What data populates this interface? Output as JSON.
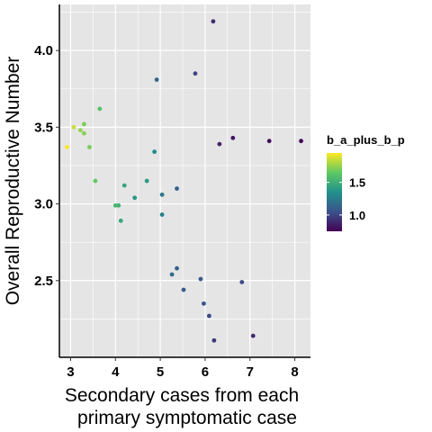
{
  "chart_data": {
    "type": "scatter",
    "title": "",
    "xlabel_lines": [
      "Secondary cases from each",
      "primary symptomatic case"
    ],
    "ylabel": "Overall Reproductive Number",
    "xlim": [
      2.75,
      8.35
    ],
    "ylim": [
      2.0,
      4.3
    ],
    "x_ticks": [
      3,
      4,
      5,
      6,
      7,
      8
    ],
    "y_ticks": [
      2.5,
      3.0,
      3.5,
      4.0
    ],
    "y_tick_labels": [
      "2.5",
      "3.0",
      "3.5",
      "4.0"
    ],
    "x_minor_gridlines": [
      3.5,
      4.5,
      5.5,
      6.5,
      7.5
    ],
    "y_minor_gridlines": [
      2.25,
      2.75,
      3.25,
      3.75,
      4.25
    ],
    "grid": true,
    "background": "#e5e5e5",
    "gridline_color": "#ffffff",
    "legend": {
      "title": "b_a_plus_b_p",
      "placement": "right",
      "ticks": [
        1.0,
        1.5
      ],
      "tick_labels": [
        "1.0",
        "1.5"
      ],
      "range": [
        0.75,
        1.95
      ],
      "colors": [
        "#440154",
        "#3b528b",
        "#21918c",
        "#5ec962",
        "#fde725"
      ]
    },
    "points": [
      {
        "x": 2.92,
        "y": 3.37,
        "c": 1.95
      },
      {
        "x": 3.07,
        "y": 3.5,
        "c": 1.85
      },
      {
        "x": 3.22,
        "y": 3.48,
        "c": 1.75
      },
      {
        "x": 3.3,
        "y": 3.52,
        "c": 1.7
      },
      {
        "x": 3.3,
        "y": 3.46,
        "c": 1.72
      },
      {
        "x": 3.42,
        "y": 3.37,
        "c": 1.7
      },
      {
        "x": 3.55,
        "y": 3.15,
        "c": 1.65
      },
      {
        "x": 3.65,
        "y": 3.62,
        "c": 1.62
      },
      {
        "x": 4.0,
        "y": 2.99,
        "c": 1.55
      },
      {
        "x": 4.07,
        "y": 2.99,
        "c": 1.52
      },
      {
        "x": 4.12,
        "y": 2.89,
        "c": 1.48
      },
      {
        "x": 4.2,
        "y": 3.12,
        "c": 1.45
      },
      {
        "x": 4.43,
        "y": 3.04,
        "c": 1.38
      },
      {
        "x": 4.7,
        "y": 3.15,
        "c": 1.4
      },
      {
        "x": 4.87,
        "y": 3.34,
        "c": 1.32
      },
      {
        "x": 4.92,
        "y": 3.81,
        "c": 1.15
      },
      {
        "x": 5.04,
        "y": 3.06,
        "c": 1.22
      },
      {
        "x": 5.04,
        "y": 2.93,
        "c": 1.28
      },
      {
        "x": 5.26,
        "y": 2.54,
        "c": 1.18
      },
      {
        "x": 5.37,
        "y": 2.58,
        "c": 1.12
      },
      {
        "x": 5.37,
        "y": 3.1,
        "c": 1.12
      },
      {
        "x": 5.52,
        "y": 2.44,
        "c": 1.1
      },
      {
        "x": 5.78,
        "y": 3.85,
        "c": 1.0
      },
      {
        "x": 5.9,
        "y": 2.51,
        "c": 1.08
      },
      {
        "x": 5.97,
        "y": 2.35,
        "c": 1.05
      },
      {
        "x": 6.09,
        "y": 2.27,
        "c": 1.02
      },
      {
        "x": 6.18,
        "y": 4.19,
        "c": 0.92
      },
      {
        "x": 6.2,
        "y": 2.11,
        "c": 0.95
      },
      {
        "x": 6.32,
        "y": 3.39,
        "c": 0.88
      },
      {
        "x": 6.62,
        "y": 3.43,
        "c": 0.82
      },
      {
        "x": 6.82,
        "y": 2.49,
        "c": 1.02
      },
      {
        "x": 7.07,
        "y": 2.14,
        "c": 0.9
      },
      {
        "x": 7.43,
        "y": 3.41,
        "c": 0.78
      },
      {
        "x": 8.14,
        "y": 3.41,
        "c": 0.76
      }
    ]
  }
}
